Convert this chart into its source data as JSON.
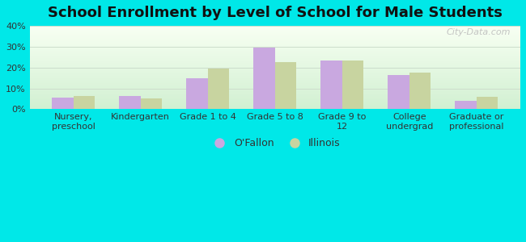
{
  "title": "School Enrollment by Level of School for Male Students",
  "categories": [
    "Nursery,\npreschool",
    "Kindergarten",
    "Grade 1 to 4",
    "Grade 5 to 8",
    "Grade 9 to\n12",
    "College\nundergrad",
    "Graduate or\nprofessional"
  ],
  "ofallon_values": [
    5.5,
    6.5,
    15.0,
    29.5,
    23.5,
    16.5,
    4.0
  ],
  "illinois_values": [
    6.5,
    5.0,
    19.5,
    22.5,
    23.5,
    17.5,
    6.0
  ],
  "ofallon_color": "#c9a8e0",
  "illinois_color": "#c8d4a0",
  "background_color": "#00e8e8",
  "ylim": [
    0,
    40
  ],
  "yticks": [
    0,
    10,
    20,
    30,
    40
  ],
  "ytick_labels": [
    "0%",
    "10%",
    "20%",
    "30%",
    "40%"
  ],
  "legend_ofallon": "O'Fallon",
  "legend_illinois": "Illinois",
  "bar_width": 0.32,
  "title_fontsize": 13,
  "tick_fontsize": 8,
  "legend_fontsize": 9,
  "watermark_text": "City-Data.com",
  "grid_color": "#ccddcc",
  "grid_linewidth": 0.7
}
